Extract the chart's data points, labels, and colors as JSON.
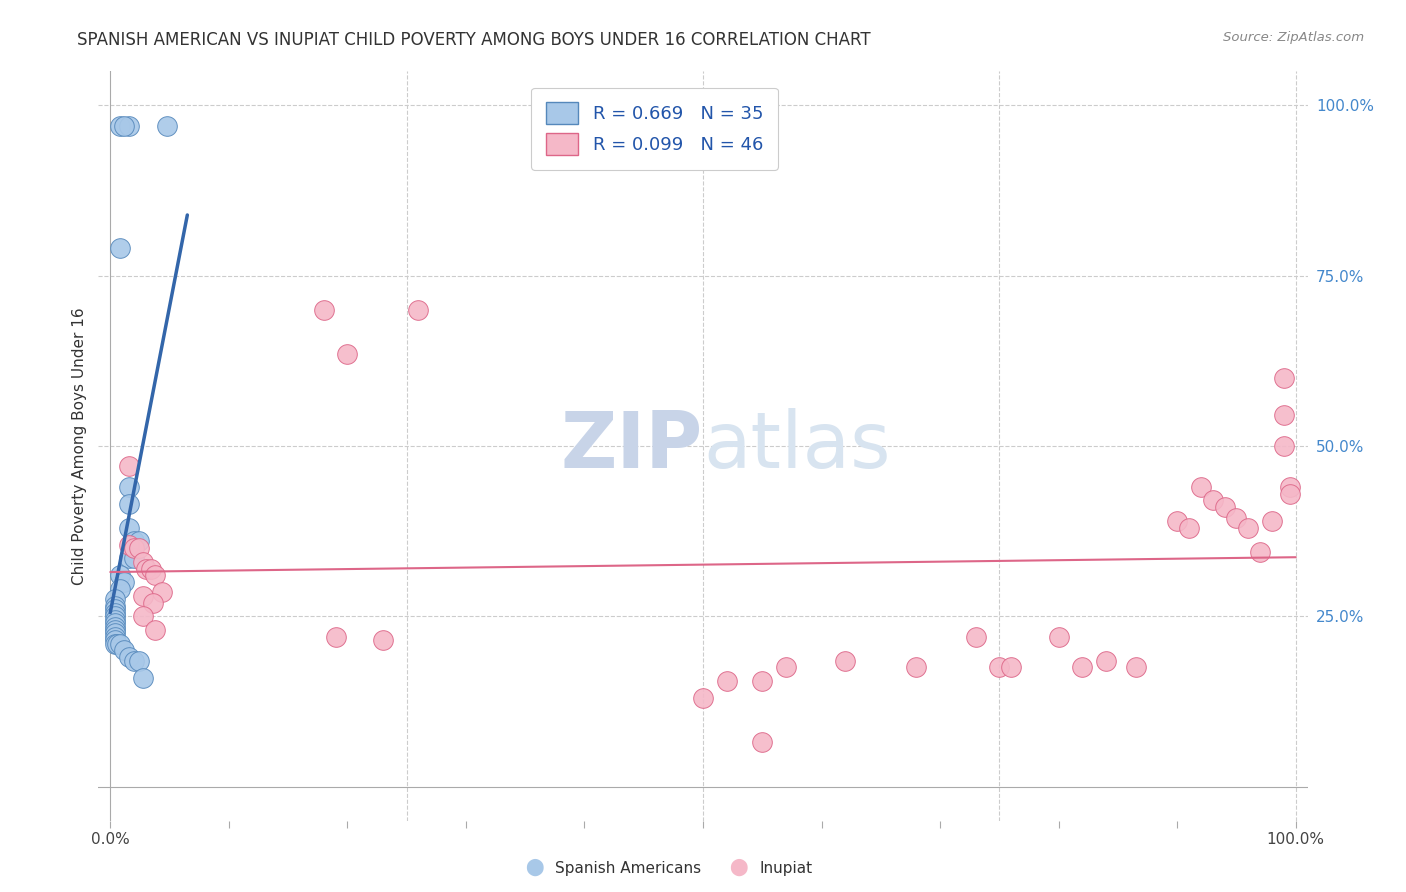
{
  "title": "SPANISH AMERICAN VS INUPIAT CHILD POVERTY AMONG BOYS UNDER 16 CORRELATION CHART",
  "source": "Source: ZipAtlas.com",
  "ylabel": "Child Poverty Among Boys Under 16",
  "xlim": [
    -0.01,
    1.01
  ],
  "ylim": [
    -0.05,
    1.05
  ],
  "blue_color": "#a8c8e8",
  "pink_color": "#f5b8c8",
  "blue_edge_color": "#5588bb",
  "pink_edge_color": "#dd6688",
  "blue_line_color": "#3366aa",
  "pink_line_color": "#dd6688",
  "watermark_color": "#dde5f0",
  "right_tick_color": "#4488cc",
  "spanish_americans": [
    [
      0.008,
      0.97
    ],
    [
      0.016,
      0.97
    ],
    [
      0.012,
      0.97
    ],
    [
      0.048,
      0.97
    ],
    [
      0.008,
      0.79
    ],
    [
      0.016,
      0.44
    ],
    [
      0.016,
      0.415
    ],
    [
      0.016,
      0.38
    ],
    [
      0.02,
      0.36
    ],
    [
      0.024,
      0.36
    ],
    [
      0.016,
      0.335
    ],
    [
      0.02,
      0.335
    ],
    [
      0.008,
      0.31
    ],
    [
      0.012,
      0.3
    ],
    [
      0.008,
      0.29
    ],
    [
      0.004,
      0.275
    ],
    [
      0.004,
      0.265
    ],
    [
      0.004,
      0.26
    ],
    [
      0.004,
      0.255
    ],
    [
      0.004,
      0.25
    ],
    [
      0.004,
      0.245
    ],
    [
      0.004,
      0.24
    ],
    [
      0.004,
      0.235
    ],
    [
      0.004,
      0.23
    ],
    [
      0.004,
      0.225
    ],
    [
      0.004,
      0.22
    ],
    [
      0.004,
      0.215
    ],
    [
      0.004,
      0.21
    ],
    [
      0.006,
      0.21
    ],
    [
      0.008,
      0.21
    ],
    [
      0.012,
      0.2
    ],
    [
      0.016,
      0.19
    ],
    [
      0.02,
      0.185
    ],
    [
      0.024,
      0.185
    ],
    [
      0.028,
      0.16
    ]
  ],
  "inupiat": [
    [
      0.18,
      0.7
    ],
    [
      0.26,
      0.7
    ],
    [
      0.2,
      0.635
    ],
    [
      0.016,
      0.47
    ],
    [
      0.016,
      0.355
    ],
    [
      0.02,
      0.35
    ],
    [
      0.024,
      0.35
    ],
    [
      0.028,
      0.33
    ],
    [
      0.03,
      0.32
    ],
    [
      0.034,
      0.32
    ],
    [
      0.038,
      0.31
    ],
    [
      0.044,
      0.285
    ],
    [
      0.028,
      0.28
    ],
    [
      0.036,
      0.27
    ],
    [
      0.028,
      0.25
    ],
    [
      0.038,
      0.23
    ],
    [
      0.19,
      0.22
    ],
    [
      0.23,
      0.215
    ],
    [
      0.62,
      0.185
    ],
    [
      0.57,
      0.175
    ],
    [
      0.52,
      0.155
    ],
    [
      0.55,
      0.155
    ],
    [
      0.5,
      0.13
    ],
    [
      0.55,
      0.065
    ],
    [
      0.68,
      0.175
    ],
    [
      0.75,
      0.175
    ],
    [
      0.73,
      0.22
    ],
    [
      0.76,
      0.175
    ],
    [
      0.8,
      0.22
    ],
    [
      0.82,
      0.175
    ],
    [
      0.84,
      0.185
    ],
    [
      0.865,
      0.175
    ],
    [
      0.9,
      0.39
    ],
    [
      0.91,
      0.38
    ],
    [
      0.92,
      0.44
    ],
    [
      0.93,
      0.42
    ],
    [
      0.94,
      0.41
    ],
    [
      0.95,
      0.395
    ],
    [
      0.96,
      0.38
    ],
    [
      0.97,
      0.345
    ],
    [
      0.98,
      0.39
    ],
    [
      0.99,
      0.6
    ],
    [
      0.99,
      0.545
    ],
    [
      0.99,
      0.5
    ],
    [
      0.995,
      0.44
    ],
    [
      0.995,
      0.43
    ]
  ]
}
